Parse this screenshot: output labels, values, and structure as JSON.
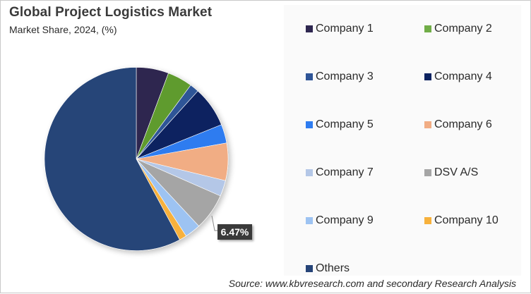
{
  "header": {
    "title": "Global Project Logistics Market",
    "subtitle": "Market Share, 2024, (%)"
  },
  "source": "Source: www.kbvresearch.com and secondary Research Analysis",
  "data_label": "6.47%",
  "chart_data": {
    "type": "pie",
    "title": "Global Project Logistics Market",
    "subtitle": "Market Share, 2024, (%)",
    "start_angle_deg": 0,
    "direction": "clockwise",
    "categories": [
      "Company 1",
      "Company 2",
      "Company 3",
      "Company 4",
      "Company 5",
      "Company 6",
      "Company 7",
      "DSV A/S",
      "Company 9",
      "Company 10",
      "Others"
    ],
    "values": [
      5.7,
      4.4,
      1.6,
      7.2,
      3.3,
      6.6,
      2.8,
      6.47,
      2.8,
      1.3,
      57.83
    ],
    "colors": [
      "#2e2750",
      "#5f9b2f",
      "#2f5597",
      "#0c2260",
      "#2e7cf0",
      "#f1ad84",
      "#b4c7e7",
      "#a5a5a5",
      "#9dc3f2",
      "#f7b13c",
      "#264478"
    ],
    "annotations": [
      {
        "category": "DSV A/S",
        "label": "6.47%"
      }
    ],
    "legend_position": "right",
    "legend": [
      {
        "label": "Company 1",
        "color": "#2e2750"
      },
      {
        "label": "Company 2",
        "color": "#70ad47"
      },
      {
        "label": "Company 3",
        "color": "#2f5597"
      },
      {
        "label": "Company 4",
        "color": "#0c2260"
      },
      {
        "label": "Company 5",
        "color": "#2e7cf0"
      },
      {
        "label": "Company 6",
        "color": "#f1ad84"
      },
      {
        "label": "Company 7",
        "color": "#b4c7e7"
      },
      {
        "label": "DSV A/S",
        "color": "#a5a5a5"
      },
      {
        "label": "Company 9",
        "color": "#9dc3f2"
      },
      {
        "label": "Company 10",
        "color": "#f7b13c"
      },
      {
        "label": "Others",
        "color": "#264478"
      }
    ]
  }
}
